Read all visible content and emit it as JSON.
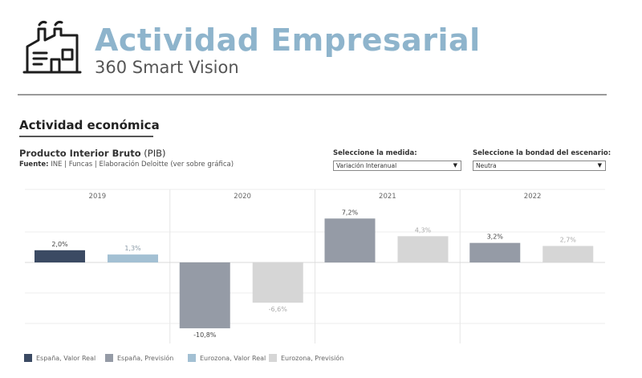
{
  "header": {
    "title": "Actividad Empresarial",
    "subtitle": "360 Smart Vision",
    "logo_icon": "factory-icon"
  },
  "section": {
    "title": "Actividad económica"
  },
  "chart_header": {
    "title_bold": "Producto Interior Bruto",
    "title_suffix": "(PIB)",
    "source_label": "Fuente:",
    "source_text": "INE | Funcas | Elaboración Deloitte (ver sobre gráfica)"
  },
  "controls": {
    "measure": {
      "label": "Seleccione la medida:",
      "value": "Variación Interanual"
    },
    "scenario": {
      "label": "Seleccione la bondad del escenario:",
      "value": "Neutra"
    }
  },
  "colors": {
    "espana_real": "#3b4a63",
    "espana_prevision": "#959ba6",
    "eurozona_real": "#a3c0d3",
    "eurozona_prevision": "#d6d6d6"
  },
  "chart_data": {
    "type": "bar",
    "categories": [
      "2019",
      "2020",
      "2021",
      "2022"
    ],
    "ylim": [
      -12.5,
      10
    ],
    "grid": true,
    "legend_position": "bottom-left",
    "series": [
      {
        "name": "España, Valor Real",
        "color_key": "espana_real"
      },
      {
        "name": "España, Previsión",
        "color_key": "espana_prevision"
      },
      {
        "name": "Eurozona, Valor Real",
        "color_key": "eurozona_real"
      },
      {
        "name": "Eurozona, Previsión",
        "color_key": "eurozona_prevision"
      }
    ],
    "bars": [
      {
        "category": "2019",
        "series": "España, Valor Real",
        "value": 2.0,
        "label": "2,0%"
      },
      {
        "category": "2019",
        "series": "Eurozona, Valor Real",
        "value": 1.3,
        "label": "1,3%"
      },
      {
        "category": "2020",
        "series": "España, Previsión",
        "value": -10.8,
        "label": "-10,8%"
      },
      {
        "category": "2020",
        "series": "Eurozona, Previsión",
        "value": -6.6,
        "label": "-6,6%"
      },
      {
        "category": "2021",
        "series": "España, Previsión",
        "value": 7.2,
        "label": "7,2%"
      },
      {
        "category": "2021",
        "series": "Eurozona, Previsión",
        "value": 4.3,
        "label": "4,3%"
      },
      {
        "category": "2022",
        "series": "España, Previsión",
        "value": 3.2,
        "label": "3,2%"
      },
      {
        "category": "2022",
        "series": "Eurozona, Previsión",
        "value": 2.7,
        "label": "2,7%"
      }
    ]
  }
}
